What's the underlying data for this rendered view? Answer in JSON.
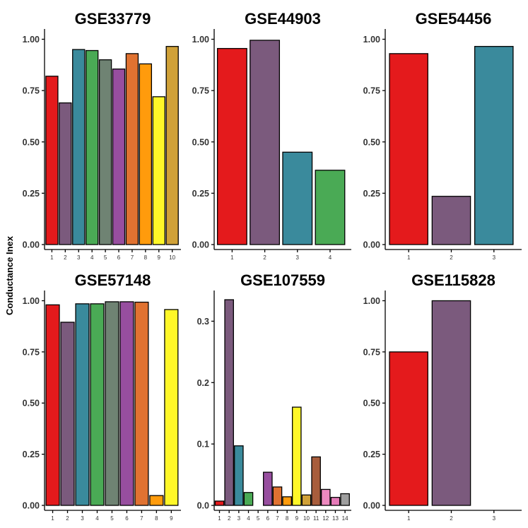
{
  "y_axis_label": "Conductance Inex",
  "palette": [
    "#e41a1c",
    "#7b5a7d",
    "#3a8a9c",
    "#4aaa55",
    "#6f8373",
    "#974e9f",
    "#e07231",
    "#ff9b0c",
    "#fff728",
    "#d0a138",
    "#a85d3c",
    "#ed89bf",
    "#e57ab8",
    "#9e9e9e"
  ],
  "chart_data": [
    {
      "type": "bar",
      "title": "GSE33779",
      "categories": [
        "1",
        "2",
        "3",
        "4",
        "5",
        "6",
        "7",
        "8",
        "9",
        "10"
      ],
      "values": [
        0.82,
        0.69,
        0.95,
        0.945,
        0.9,
        0.855,
        0.93,
        0.88,
        0.72,
        0.965
      ],
      "ylim": [
        0,
        1.05
      ],
      "yticks": [
        0,
        0.25,
        0.5,
        0.75,
        1.0
      ],
      "ytick_labels": [
        "0.00",
        "0.25",
        "0.50",
        "0.75",
        "1.00"
      ]
    },
    {
      "type": "bar",
      "title": "GSE44903",
      "categories": [
        "1",
        "2",
        "3",
        "4"
      ],
      "values": [
        0.955,
        0.995,
        0.45,
        0.362
      ],
      "ylim": [
        0,
        1.05
      ],
      "yticks": [
        0,
        0.25,
        0.5,
        0.75,
        1.0
      ],
      "ytick_labels": [
        "0.00",
        "0.25",
        "0.50",
        "0.75",
        "1.00"
      ]
    },
    {
      "type": "bar",
      "title": "GSE54456",
      "categories": [
        "1",
        "2",
        "3"
      ],
      "values": [
        0.93,
        0.235,
        0.965
      ],
      "ylim": [
        0,
        1.05
      ],
      "yticks": [
        0,
        0.25,
        0.5,
        0.75,
        1.0
      ],
      "ytick_labels": [
        "0.00",
        "0.25",
        "0.50",
        "0.75",
        "1.00"
      ]
    },
    {
      "type": "bar",
      "title": "GSE57148",
      "categories": [
        "1",
        "2",
        "3",
        "4",
        "5",
        "6",
        "7",
        "8",
        "9"
      ],
      "values": [
        0.98,
        0.895,
        0.985,
        0.985,
        0.995,
        0.995,
        0.993,
        0.048,
        0.957
      ],
      "ylim": [
        0,
        1.05
      ],
      "yticks": [
        0,
        0.25,
        0.5,
        0.75,
        1.0
      ],
      "ytick_labels": [
        "0.00",
        "0.25",
        "0.50",
        "0.75",
        "1.00"
      ]
    },
    {
      "type": "bar",
      "title": "GSE107559",
      "categories": [
        "1",
        "2",
        "3",
        "4",
        "5",
        "6",
        "7",
        "8",
        "9",
        "10",
        "11",
        "12",
        "13",
        "14"
      ],
      "values": [
        0.007,
        0.335,
        0.097,
        0.021,
        0.0,
        0.054,
        0.03,
        0.014,
        0.16,
        0.017,
        0.079,
        0.026,
        0.013,
        0.019
      ],
      "ylim": [
        0,
        0.35
      ],
      "yticks": [
        0,
        0.1,
        0.2,
        0.3
      ],
      "ytick_labels": [
        "0.0",
        "0.1",
        "0.2",
        "0.3"
      ]
    },
    {
      "type": "bar",
      "title": "GSE115828",
      "categories": [
        "1",
        "2",
        "3"
      ],
      "values": [
        0.75,
        1.0,
        0.0
      ],
      "ylim": [
        0,
        1.05
      ],
      "yticks": [
        0,
        0.25,
        0.5,
        0.75,
        1.0
      ],
      "ytick_labels": [
        "0.00",
        "0.25",
        "0.50",
        "0.75",
        "1.00"
      ]
    }
  ]
}
